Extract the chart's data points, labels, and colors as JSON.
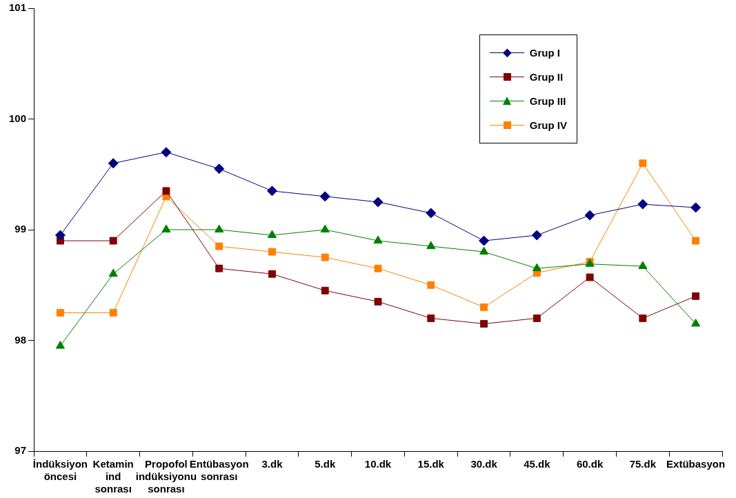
{
  "chart_data": {
    "type": "line",
    "categories": [
      "İndüksiyon öncesi",
      "Ketamin ind sonrası",
      "Propofol indüksiyonu sonrası",
      "Entübasyon sonrası",
      "3.dk",
      "5.dk",
      "10.dk",
      "15.dk",
      "30.dk",
      "45.dk",
      "60.dk",
      "75.dk",
      "Extübasyon"
    ],
    "series": [
      {
        "name": "Grup I",
        "color": "#000080",
        "marker": "diamond",
        "values": [
          98.95,
          99.6,
          99.7,
          99.55,
          99.35,
          99.3,
          99.25,
          99.15,
          98.9,
          98.95,
          99.13,
          99.23,
          99.2
        ]
      },
      {
        "name": "Grup II",
        "color": "#800000",
        "marker": "square",
        "values": [
          98.9,
          98.9,
          99.35,
          98.65,
          98.6,
          98.45,
          98.35,
          98.2,
          98.15,
          98.2,
          98.57,
          98.2,
          98.4
        ]
      },
      {
        "name": "Grup III",
        "color": "#008000",
        "marker": "triangle",
        "values": [
          97.95,
          98.6,
          99,
          99,
          98.95,
          99,
          98.9,
          98.85,
          98.8,
          98.65,
          98.69,
          98.67,
          98.15
        ]
      },
      {
        "name": "Grup IV",
        "color": "#ff8000",
        "marker": "square",
        "values": [
          98.25,
          98.25,
          99.3,
          98.85,
          98.8,
          98.75,
          98.65,
          98.5,
          98.3,
          98.61,
          98.71,
          99.6,
          98.9
        ]
      }
    ],
    "ylim": [
      97,
      101
    ],
    "yticks": [
      97,
      98,
      99,
      100,
      101
    ],
    "grid": false,
    "legend": "top right",
    "line_style": "solid"
  }
}
